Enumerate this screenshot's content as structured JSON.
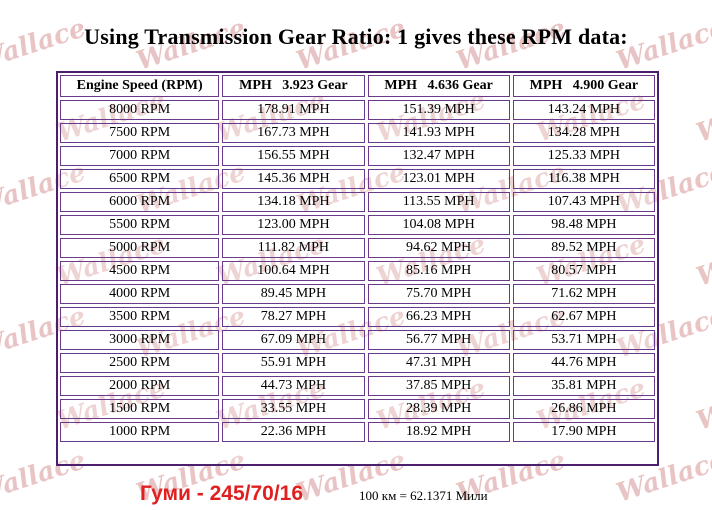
{
  "title": "Using Transmission Gear Ratio: 1 gives these RPM data:",
  "table": {
    "headers": [
      "Engine Speed (RPM)",
      "MPH   3.923 Gear",
      "MPH   4.636 Gear",
      "MPH   4.900 Gear"
    ],
    "rows": [
      [
        "8000 RPM",
        "178.91 MPH",
        "151.39 MPH",
        "143.24 MPH"
      ],
      [
        "7500 RPM",
        "167.73 MPH",
        "141.93 MPH",
        "134.28 MPH"
      ],
      [
        "7000 RPM",
        "156.55 MPH",
        "132.47 MPH",
        "125.33 MPH"
      ],
      [
        "6500 RPM",
        "145.36 MPH",
        "123.01 MPH",
        "116.38 MPH"
      ],
      [
        "6000 RPM",
        "134.18 MPH",
        "113.55 MPH",
        "107.43 MPH"
      ],
      [
        "5500 RPM",
        "123.00 MPH",
        "104.08 MPH",
        "98.48 MPH"
      ],
      [
        "5000 RPM",
        "111.82 MPH",
        "94.62 MPH",
        "89.52 MPH"
      ],
      [
        "4500 RPM",
        "100.64 MPH",
        "85.16 MPH",
        "80.57 MPH"
      ],
      [
        "4000 RPM",
        "89.45 MPH",
        "75.70 MPH",
        "71.62 MPH"
      ],
      [
        "3500 RPM",
        "78.27 MPH",
        "66.23 MPH",
        "62.67 MPH"
      ],
      [
        "3000 RPM",
        "67.09 MPH",
        "56.77 MPH",
        "53.71 MPH"
      ],
      [
        "2500 RPM",
        "55.91 MPH",
        "47.31 MPH",
        "44.76 MPH"
      ],
      [
        "2000 RPM",
        "44.73 MPH",
        "37.85 MPH",
        "35.81 MPH"
      ],
      [
        "1500 RPM",
        "33.55 MPH",
        "28.39 MPH",
        "26.86 MPH"
      ],
      [
        "1000 RPM",
        "22.36 MPH",
        "18.92 MPH",
        "17.90 MPH"
      ]
    ]
  },
  "footer": {
    "tire_label": "Гуми - 245/70/16",
    "conversion": "100 км = 62.1371 Мили"
  },
  "watermark": {
    "text": "Wallace",
    "color": "#e8c4c4"
  },
  "colors": {
    "table_border": "#4b1e6e",
    "tire_label": "#e02020"
  }
}
